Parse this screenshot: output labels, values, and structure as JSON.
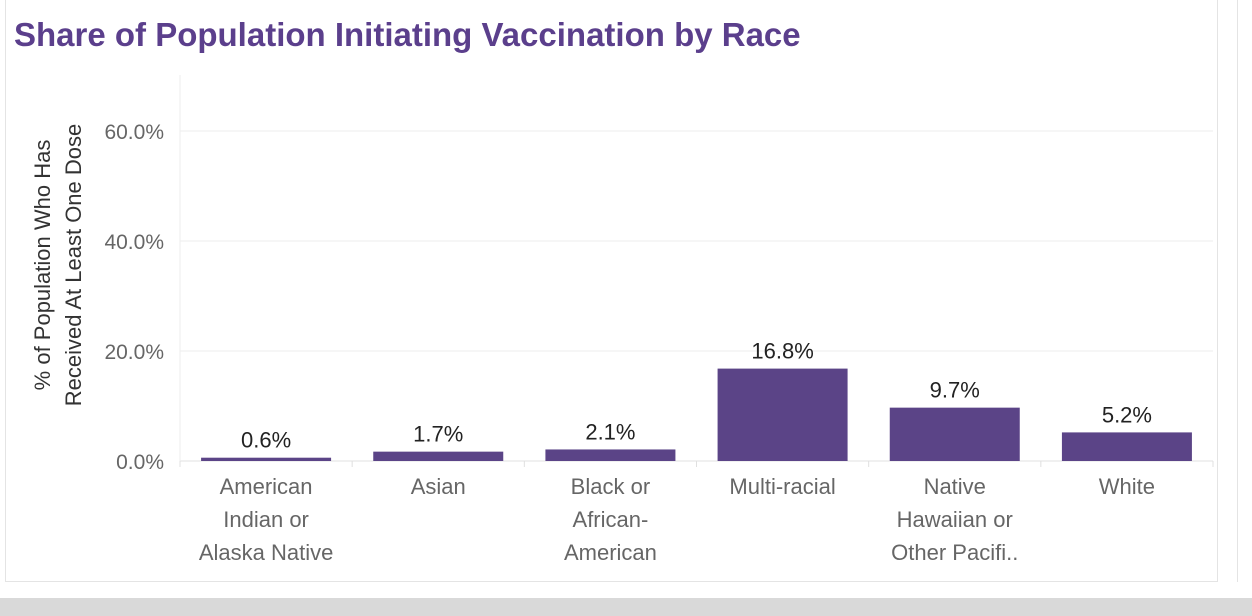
{
  "chart_data": {
    "type": "bar",
    "title": "Share of Population Initiating Vaccination by Race",
    "ylabel_lines": [
      "% of Population Who Has",
      "Received At Least One Dose"
    ],
    "xlabel": "",
    "ylim": [
      0,
      0.6
    ],
    "yticks": [
      {
        "value": 0.0,
        "label": "0.0%"
      },
      {
        "value": 0.2,
        "label": "20.0%"
      },
      {
        "value": 0.4,
        "label": "40.0%"
      },
      {
        "value": 0.6,
        "label": "60.0%"
      }
    ],
    "categories": [
      {
        "lines": [
          "American",
          "Indian or",
          "Alaska Native"
        ]
      },
      {
        "lines": [
          "Asian"
        ]
      },
      {
        "lines": [
          "Black or",
          "African-",
          "American"
        ]
      },
      {
        "lines": [
          "Multi-racial"
        ]
      },
      {
        "lines": [
          "Native",
          "Hawaiian or",
          "Other Pacifi.."
        ]
      },
      {
        "lines": [
          "White"
        ]
      }
    ],
    "values": [
      0.006,
      0.017,
      0.021,
      0.168,
      0.097,
      0.052
    ],
    "data_labels": [
      "0.6%",
      "1.7%",
      "2.1%",
      "16.8%",
      "9.7%",
      "5.2%"
    ],
    "bar_color": "#5b4487",
    "grid": true,
    "legend": "none"
  }
}
